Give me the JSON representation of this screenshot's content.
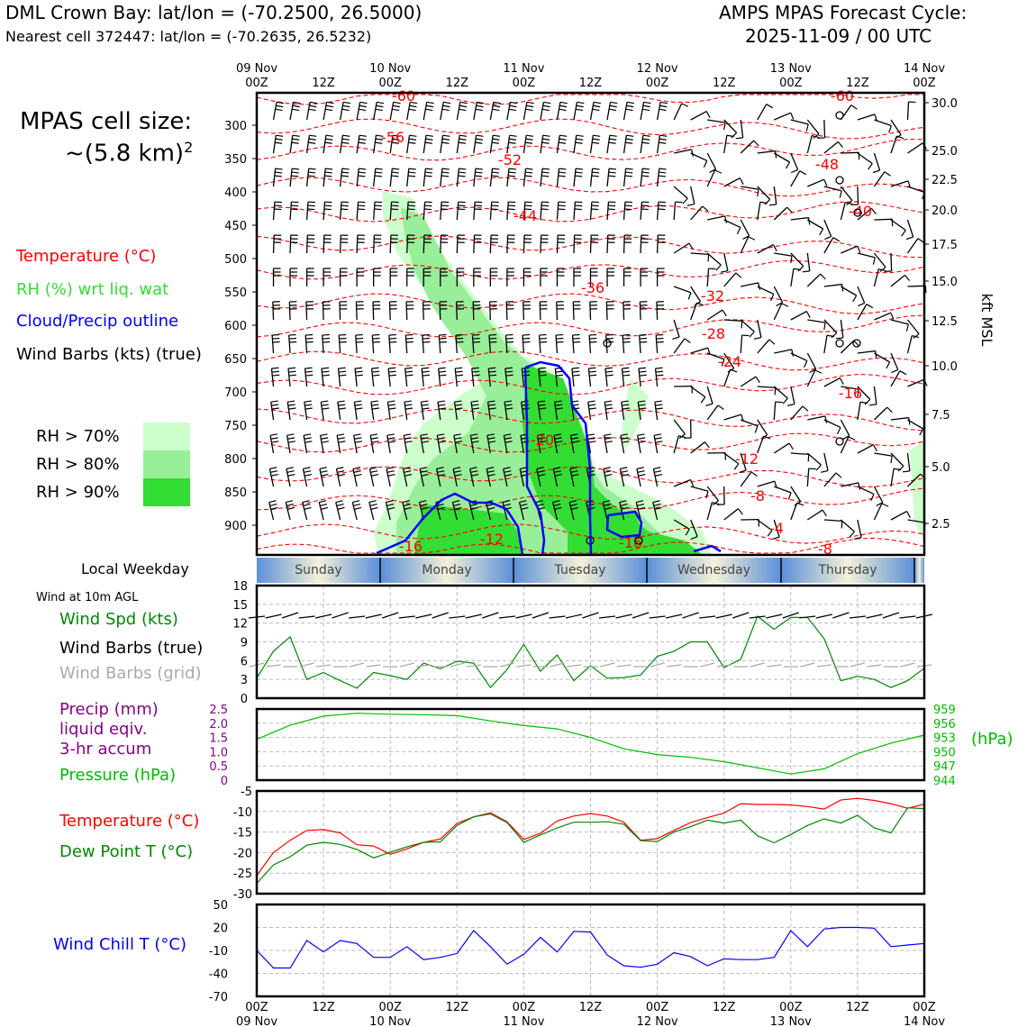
{
  "header": {
    "title_left": "DML Crown Bay: lat/lon = (-70.2500, 26.5000)",
    "subtitle_left": "Nearest cell 372447: lat/lon = (-70.2635, 26.5232)",
    "title_right_1": "AMPS MPAS Forecast Cycle:",
    "title_right_2": "2025-11-09 / 00 UTC"
  },
  "left_panel": {
    "cell_size_label": "MPAS cell size:",
    "cell_size_value": "~(5.8 km)",
    "cell_size_exp": "2",
    "legend_temperature": "Temperature (°C)",
    "legend_rh": "RH (%) wrt liq. wat",
    "legend_cloud": "Cloud/Precip outline",
    "legend_wind": "Wind Barbs (kts) (true)",
    "rh_70": "RH > 70%",
    "rh_80": "RH > 80%",
    "rh_90": "RH > 90%",
    "weekday_label": "Local Weekday",
    "wind10m_label": "Wind at 10m AGL",
    "windspd_label": "Wind Spd (kts)",
    "windbarbs_true": "Wind Barbs (true)",
    "windbarbs_grid": "Wind Barbs (grid)",
    "precip_label_1": "Precip (mm)",
    "precip_label_2": "liquid eqiv.",
    "precip_label_3": "3-hr accum",
    "pressure_label": "Pressure (hPa)",
    "temp_label": "Temperature (°C)",
    "dewpoint_label": "Dew Point T (°C)",
    "windchill_label": "Wind Chill T (°C)"
  },
  "colors": {
    "temperature": "#ff0000",
    "rh_text": "#33dd33",
    "cloud": "#0000ff",
    "rh70": "#ccffcc",
    "rh80": "#99ee99",
    "rh90": "#33dd33",
    "wind_speed": "#008800",
    "grid_barbs": "#aaaaaa",
    "precip": "#880088",
    "pressure": "#00bb00",
    "dewpoint": "#008800",
    "windchill": "#0000ff"
  },
  "time_axis": {
    "top_dates": [
      "09 Nov",
      "10 Nov",
      "11 Nov",
      "12 Nov",
      "13 Nov",
      "14 Nov"
    ],
    "hour_labels": [
      "00Z",
      "12Z",
      "00Z",
      "12Z",
      "00Z",
      "12Z",
      "00Z",
      "12Z",
      "00Z",
      "12Z",
      "00Z"
    ],
    "weekdays": [
      "Sunday",
      "Monday",
      "Tuesday",
      "Wednesday",
      "Thursday"
    ]
  },
  "chart_data": [
    {
      "type": "heatmap",
      "name_hint": "time-height cross section",
      "y_axis_pressure_ticks": [
        "300",
        "350",
        "400",
        "450",
        "500",
        "550",
        "600",
        "650",
        "700",
        "750",
        "800",
        "850",
        "900"
      ],
      "y_axis_height_ticks": [
        "30.0",
        "25.0",
        "22.5",
        "20.0",
        "17.5",
        "15.0",
        "12.5",
        "10.0",
        "7.5",
        "5.0",
        "2.5"
      ],
      "ylabel_right": "kft MSL",
      "isotherm_labels": [
        "-60",
        "-56",
        "-52",
        "-44",
        "-36",
        "-32",
        "-28",
        "-24",
        "-20",
        "-16",
        "-12",
        "-8",
        "-4",
        "-8",
        "-12",
        "-16",
        "-16",
        "-60",
        "-48",
        "-40"
      ],
      "temperature_unit": "°C"
    },
    {
      "type": "line",
      "name_hint": "wind speed at 10m",
      "ylim": [
        0,
        18
      ],
      "y_ticks": [
        "0",
        "3",
        "6",
        "9",
        "12",
        "15",
        "18"
      ],
      "x_hours": [
        0,
        3,
        6,
        9,
        12,
        15,
        18,
        21,
        24,
        27,
        30,
        33,
        36,
        39,
        42,
        45,
        48,
        51,
        54,
        57,
        60,
        63,
        66,
        69,
        72,
        75,
        78,
        81,
        84,
        87,
        90,
        93,
        96,
        99,
        102,
        105,
        108,
        111,
        114,
        117,
        120
      ],
      "series": [
        {
          "values": [
            3.2,
            7.5,
            9.8,
            3.0,
            4.1,
            2.8,
            1.6,
            4.1,
            3.6,
            3.0,
            5.6,
            4.7,
            5.9,
            5.6,
            1.7,
            4.6,
            8.6,
            4.3,
            6.9,
            2.8,
            5.2,
            3.2,
            3.3,
            3.7,
            6.7,
            7.5,
            9.0,
            9.0,
            4.9,
            6.2,
            13.1,
            11.0,
            12.9,
            12.9,
            9.5,
            2.8,
            3.5,
            3.0,
            1.7,
            2.8,
            4.8
          ]
        }
      ]
    },
    {
      "type": "line",
      "name_hint": "precip and pressure",
      "precip_ticks": [
        "0",
        "0.5",
        "1.0",
        "1.5",
        "2.0",
        "2.5"
      ],
      "pressure_ticks": [
        "944",
        "947",
        "950",
        "953",
        "956",
        "959"
      ],
      "pressure_unit_label": "(hPa)",
      "pressure_ylim": [
        944,
        959
      ],
      "x_hours": [
        0,
        6,
        12,
        18,
        24,
        30,
        36,
        42,
        48,
        54,
        60,
        66,
        72,
        78,
        84,
        90,
        96,
        102,
        108,
        114,
        120
      ],
      "series": [
        {
          "values": [
            952.6,
            955.6,
            957.5,
            958.1,
            957.9,
            957.8,
            957.6,
            956.5,
            955.5,
            954.8,
            953.0,
            950.6,
            949.4,
            948.8,
            947.9,
            946.6,
            945.3,
            946.4,
            949.6,
            951.8,
            953.5
          ]
        }
      ]
    },
    {
      "type": "line",
      "name_hint": "temperature and dew point",
      "ylim": [
        -30,
        -5
      ],
      "y_ticks": [
        "-5",
        "-10",
        "-15",
        "-20",
        "-25",
        "-30"
      ],
      "x_hours": [
        0,
        3,
        6,
        9,
        12,
        15,
        18,
        21,
        24,
        27,
        30,
        33,
        36,
        39,
        42,
        45,
        48,
        51,
        54,
        57,
        60,
        63,
        66,
        69,
        72,
        75,
        78,
        81,
        84,
        87,
        90,
        93,
        96,
        99,
        102,
        105,
        108,
        111,
        114,
        117,
        120
      ],
      "series": [
        {
          "values": [
            -25.6,
            -20.0,
            -17.0,
            -14.6,
            -14.4,
            -15.2,
            -18.1,
            -18.4,
            -20.4,
            -19.1,
            -17.5,
            -16.7,
            -12.9,
            -11.3,
            -10.3,
            -12.5,
            -16.8,
            -15.3,
            -12.3,
            -11.1,
            -10.5,
            -11.1,
            -12.6,
            -17.0,
            -16.6,
            -14.6,
            -12.7,
            -11.5,
            -10.4,
            -8.1,
            -8.3,
            -8.3,
            -8.4,
            -8.8,
            -9.4,
            -7.2,
            -6.8,
            -7.3,
            -8.1,
            -9.2,
            -8.2
          ]
        },
        {
          "values": [
            -27.5,
            -23.0,
            -21.0,
            -18.2,
            -17.5,
            -18.0,
            -19.2,
            -21.3,
            -19.9,
            -18.6,
            -17.5,
            -17.4,
            -13.4,
            -11.3,
            -10.6,
            -12.7,
            -17.5,
            -15.7,
            -14.0,
            -12.6,
            -12.6,
            -12.5,
            -13.1,
            -17.1,
            -17.3,
            -15.0,
            -13.7,
            -12.1,
            -12.8,
            -12.1,
            -15.9,
            -17.6,
            -15.6,
            -13.4,
            -11.8,
            -12.8,
            -10.9,
            -14.0,
            -15.2,
            -9.1,
            -9.3
          ]
        }
      ]
    },
    {
      "type": "line",
      "name_hint": "wind chill",
      "ylim": [
        -70,
        50
      ],
      "y_ticks": [
        "50",
        "20",
        "-10",
        "-40",
        "-70"
      ],
      "x_hours": [
        0,
        3,
        6,
        9,
        12,
        15,
        18,
        21,
        24,
        27,
        30,
        33,
        36,
        39,
        42,
        45,
        48,
        51,
        54,
        57,
        60,
        63,
        66,
        69,
        72,
        75,
        78,
        81,
        84,
        87,
        90,
        93,
        96,
        99,
        102,
        105,
        108,
        111,
        114,
        117,
        120
      ],
      "series": [
        {
          "values": [
            -10,
            -33,
            -33,
            3,
            -12,
            3,
            -1,
            -19,
            -19,
            -5,
            -22,
            -19,
            -14,
            16,
            -5,
            -28,
            -15,
            7,
            -12,
            15,
            14,
            -16,
            -30,
            -32,
            -28,
            -13,
            -18,
            -30,
            -21,
            -22,
            -22,
            -19,
            16,
            -5,
            18,
            20,
            20,
            19,
            -5,
            -3,
            -1
          ]
        }
      ]
    }
  ]
}
